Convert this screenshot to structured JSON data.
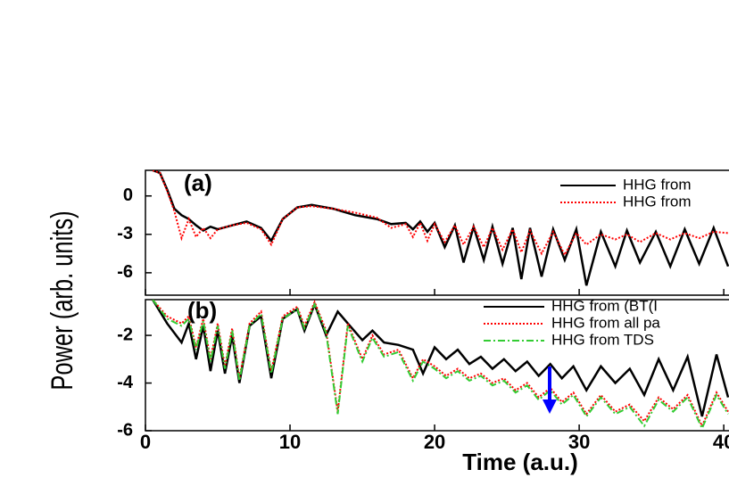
{
  "chart_data": [
    {
      "type": "line",
      "label": "(a)",
      "ylabel": "Power (arb. units)",
      "x": [
        0.5,
        1,
        1.5,
        2,
        2.5,
        3,
        3.5,
        4,
        4.5,
        5,
        6,
        7,
        8,
        8.7,
        9.5,
        10.5,
        11.5,
        13,
        14.5,
        16,
        17,
        18,
        18.5,
        19,
        19.5,
        20,
        20.7,
        21.4,
        22,
        22.7,
        23.4,
        24,
        24.7,
        25.4,
        26,
        26.6,
        27.4,
        28.2,
        29,
        29.8,
        30.5,
        31.5,
        32.5,
        33.3,
        34.2,
        35.3,
        36.3,
        37.3,
        38.3,
        39.3,
        40.3
      ],
      "series": [
        {
          "name": "HHG from",
          "color": "#000000",
          "style": "solid",
          "values": [
            2,
            1.8,
            0.5,
            -1,
            -1.5,
            -1.8,
            -2.3,
            -2.7,
            -2.4,
            -2.6,
            -2.3,
            -2,
            -2.5,
            -3.5,
            -1.8,
            -0.9,
            -0.7,
            -1,
            -1.5,
            -1.8,
            -2.2,
            -2.1,
            -2.6,
            -2,
            -2.8,
            -2.1,
            -4,
            -2.3,
            -5.2,
            -2.4,
            -5,
            -2.4,
            -5.3,
            -2.5,
            -6.5,
            -2.5,
            -6.3,
            -2.6,
            -5,
            -2.6,
            -7,
            -2.8,
            -5.5,
            -2.7,
            -5.2,
            -2.8,
            -5.5,
            -2.6,
            -5.3,
            -2.5,
            -5.5
          ]
        },
        {
          "name": "HHG from",
          "color": "#ff0000",
          "style": "dotted",
          "values": [
            2,
            1.8,
            0.4,
            -1.2,
            -3.3,
            -1.8,
            -3.2,
            -2.5,
            -3.3,
            -2.6,
            -2.3,
            -2.1,
            -2.6,
            -3.8,
            -1.8,
            -0.9,
            -0.8,
            -1,
            -1.3,
            -1.7,
            -2.5,
            -2.2,
            -3.2,
            -2.1,
            -3.5,
            -2.2,
            -3.6,
            -2.3,
            -3.8,
            -2.4,
            -4,
            -2.5,
            -4.2,
            -2.6,
            -4.4,
            -2.7,
            -4.5,
            -2.8,
            -4.6,
            -2.9,
            -3.8,
            -3,
            -3.4,
            -3,
            -3.6,
            -2.9,
            -3.4,
            -2.9,
            -3.3,
            -2.8,
            -2.9
          ]
        }
      ],
      "xlim": [
        0,
        40.3
      ],
      "xticks": [
        0,
        10,
        20,
        30,
        40
      ],
      "ylim": [
        -7.75,
        2
      ],
      "yticks": [
        0,
        -3,
        -6
      ],
      "legend": "upper right"
    },
    {
      "type": "line",
      "label": "(b)",
      "xlabel": "Time (a.u.)",
      "x": [
        0.5,
        1.5,
        2.5,
        3,
        3.5,
        4,
        4.5,
        5,
        5.5,
        6,
        6.5,
        7.2,
        8,
        8.7,
        9.5,
        10.5,
        11,
        11.7,
        12.5,
        13.3,
        14,
        15,
        15.7,
        16.5,
        17.5,
        18.5,
        19.2,
        20,
        20.8,
        21.6,
        22.4,
        23.2,
        24,
        24.8,
        25.6,
        26.4,
        27.2,
        28,
        28.8,
        29.6,
        30.5,
        31.5,
        32.5,
        33.5,
        34.5,
        35.5,
        36.5,
        37.5,
        38.5,
        39.5,
        40.3
      ],
      "series": [
        {
          "name": "HHG from (BT(I",
          "color": "#000000",
          "style": "solid",
          "values": [
            -0.5,
            -1.5,
            -2.3,
            -1.5,
            -3,
            -1.6,
            -3.5,
            -1.8,
            -3.6,
            -2,
            -4,
            -1.6,
            -1.2,
            -3.8,
            -1.3,
            -0.9,
            -1.8,
            -0.7,
            -2,
            -1,
            -1.5,
            -2.2,
            -1.8,
            -2.3,
            -2.4,
            -2.6,
            -3.6,
            -2.5,
            -3,
            -2.6,
            -3.2,
            -2.9,
            -3.4,
            -3,
            -3.5,
            -3.1,
            -3.7,
            -3.2,
            -3.8,
            -3.3,
            -4.3,
            -3.3,
            -4,
            -3.4,
            -4.5,
            -3,
            -4.3,
            -2.9,
            -5.4,
            -2.8,
            -4.6
          ]
        },
        {
          "name": "HHG from all pa",
          "color": "#ff0000",
          "style": "dotted",
          "values": [
            -0.5,
            -1.2,
            -1.5,
            -1.2,
            -2.5,
            -1.3,
            -3,
            -1.5,
            -3.3,
            -1.7,
            -3.8,
            -1.5,
            -1,
            -3.5,
            -1.2,
            -0.8,
            -1.6,
            -0.6,
            -1.8,
            -5.2,
            -1.5,
            -3,
            -2,
            -2.8,
            -2.6,
            -3.8,
            -3,
            -3.3,
            -3.7,
            -3.4,
            -3.8,
            -3.6,
            -4,
            -3.8,
            -4.3,
            -4,
            -4.6,
            -4.2,
            -4.8,
            -4.4,
            -5.3,
            -4.5,
            -5.2,
            -4.9,
            -5.6,
            -4.6,
            -5.1,
            -4.5,
            -5.8,
            -4.4,
            -5.2
          ]
        },
        {
          "name": "HHG from TDS",
          "color": "#33cc33",
          "style": "dashdot",
          "values": [
            -0.5,
            -1.3,
            -1.6,
            -1.3,
            -2.6,
            -1.4,
            -3.1,
            -1.6,
            -3.4,
            -1.8,
            -3.9,
            -1.6,
            -1.1,
            -3.6,
            -1.3,
            -0.9,
            -1.7,
            -0.7,
            -1.9,
            -5.3,
            -1.6,
            -3.1,
            -2.1,
            -2.9,
            -2.7,
            -3.9,
            -3.1,
            -3.4,
            -3.8,
            -3.5,
            -3.9,
            -3.7,
            -4.1,
            -3.9,
            -4.4,
            -4.1,
            -4.7,
            -4.3,
            -4.9,
            -4.5,
            -5.4,
            -4.6,
            -5.3,
            -5,
            -5.8,
            -4.7,
            -5.2,
            -4.6,
            -5.9,
            -4.5,
            -5.3
          ]
        }
      ],
      "xlim": [
        0,
        40.3
      ],
      "xticks": [
        0,
        10,
        20,
        30,
        40
      ],
      "ylim": [
        -6,
        -0.5
      ],
      "yticks": [
        -2,
        -4,
        -6
      ],
      "legend": "upper right"
    }
  ]
}
